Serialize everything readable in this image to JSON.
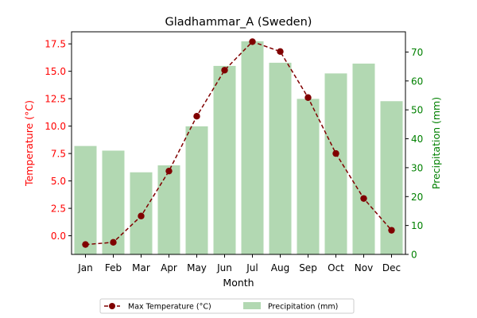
{
  "chart_data": {
    "type": "bar+line",
    "title": "Gladhammar_A (Sweden)",
    "xlabel": "Month",
    "categories": [
      "Jan",
      "Feb",
      "Mar",
      "Apr",
      "May",
      "Jun",
      "Jul",
      "Aug",
      "Sep",
      "Oct",
      "Nov",
      "Dec"
    ],
    "left_axis": {
      "label": "Temperature (°C)",
      "ylim": [
        -1.7,
        18.6
      ],
      "ticks": [
        0.0,
        2.5,
        5.0,
        7.5,
        10.0,
        12.5,
        15.0,
        17.5
      ],
      "tick_labels": [
        "0.0",
        "2.5",
        "5.0",
        "7.5",
        "10.0",
        "12.5",
        "15.0",
        "17.5"
      ],
      "color": "#ff0000"
    },
    "right_axis": {
      "label": "Precipitation (mm)",
      "ylim": [
        0,
        77
      ],
      "ticks": [
        0,
        10,
        20,
        30,
        40,
        50,
        60,
        70
      ],
      "tick_labels": [
        "0",
        "10",
        "20",
        "30",
        "40",
        "50",
        "60",
        "70"
      ],
      "color": "#008000"
    },
    "series": [
      {
        "name": "Max Temperature (°C)",
        "type": "line",
        "axis": "left",
        "color": "#800000",
        "style": "dashed",
        "marker": "circle",
        "values": [
          -0.8,
          -0.6,
          1.8,
          5.9,
          10.9,
          15.1,
          17.7,
          16.8,
          12.6,
          7.5,
          3.4,
          0.5
        ]
      },
      {
        "name": "Precipitation (mm)",
        "type": "bar",
        "axis": "right",
        "color": "#b2d8b2",
        "values": [
          37.5,
          35.9,
          28.4,
          30.8,
          44.3,
          65.2,
          73.7,
          66.3,
          53.8,
          62.6,
          66.0,
          53.0
        ]
      }
    ],
    "legend": {
      "placement": "bottom-center",
      "entries": [
        "Max Temperature (°C)",
        "Precipitation (mm)"
      ]
    },
    "grid": false
  }
}
